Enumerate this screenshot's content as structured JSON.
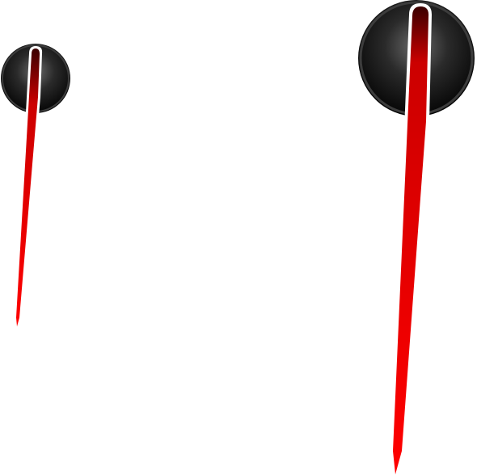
{
  "scene": {
    "background": "#ffffff",
    "needles": [
      {
        "name": "small-gauge-needle",
        "hub_color": "#1a1a1a",
        "needle_color": "#ff0000",
        "highlight_color": "#ffffff"
      },
      {
        "name": "large-gauge-needle",
        "hub_color": "#1a1a1a",
        "needle_color": "#ff0000",
        "highlight_color": "#ffffff"
      }
    ]
  }
}
